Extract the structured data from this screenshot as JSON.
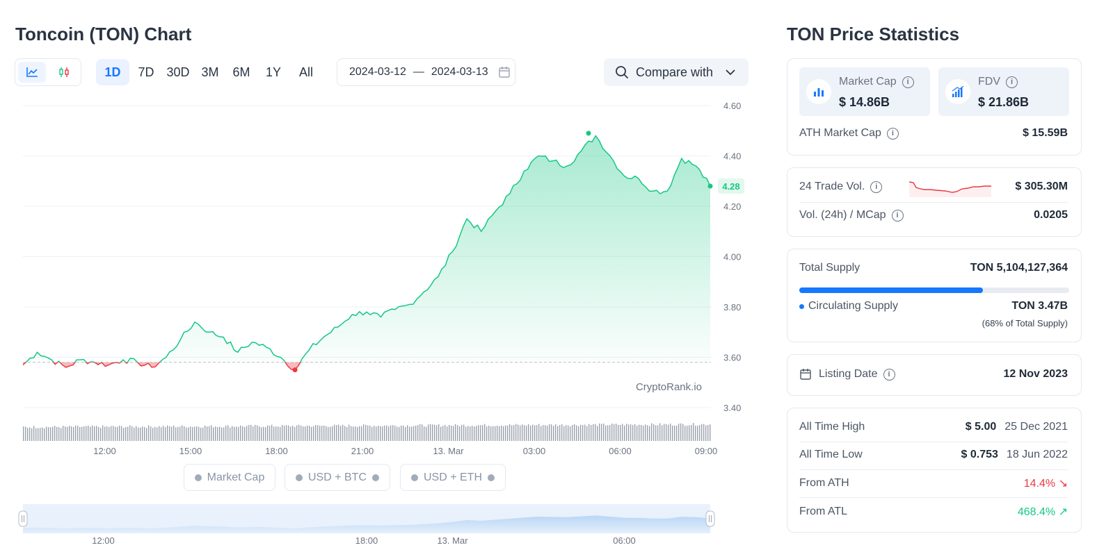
{
  "header": {
    "title": "Toncoin (TON) Chart"
  },
  "chart_controls": {
    "ranges": [
      "1D",
      "7D",
      "30D",
      "3M",
      "6M",
      "1Y",
      "All"
    ],
    "active_range": "1D",
    "date_from": "2024-03-12",
    "date_sep": "—",
    "date_to": "2024-03-13",
    "compare_label": "Compare with"
  },
  "legend": {
    "market_cap": "Market Cap",
    "usd_btc": "USD + BTC",
    "usd_eth": "USD + ETH"
  },
  "watermark": "CryptoRank.io",
  "chart_data": {
    "type": "area",
    "title": "Toncoin (TON) Chart",
    "y_ticks": [
      "4.60",
      "4.40",
      "4.20",
      "4.00",
      "3.80",
      "3.60",
      "3.40"
    ],
    "ylim": [
      3.4,
      4.6
    ],
    "x_ticks": [
      "12:00",
      "15:00",
      "18:00",
      "21:00",
      "13. Mar",
      "03:00",
      "06:00",
      "09:00"
    ],
    "navigator_ticks": [
      "12:00",
      "18:00",
      "13. Mar",
      "06:00"
    ],
    "baseline": 3.58,
    "current_value_label": "4.28",
    "x_hours": [
      0,
      0.5,
      1,
      1.5,
      2,
      2.5,
      3,
      3.5,
      4,
      4.5,
      5,
      5.5,
      6,
      6.5,
      7,
      7.5,
      8,
      8.5,
      9,
      9.5,
      10,
      10.5,
      11,
      11.5,
      12,
      12.5,
      13,
      13.5,
      14,
      14.5,
      15,
      15.5,
      16,
      16.5,
      17,
      17.5,
      18,
      18.5,
      19,
      19.5,
      20,
      20.5,
      21,
      21.5,
      22,
      22.5,
      23,
      23.5,
      24
    ],
    "x_dates": [
      "2024-03-12 09:00",
      "2024-03-12 09:30",
      "2024-03-12 10:00",
      "2024-03-12 10:30",
      "2024-03-12 11:00",
      "2024-03-12 11:30",
      "2024-03-12 12:00",
      "2024-03-12 12:30",
      "2024-03-12 13:00",
      "2024-03-12 13:30",
      "2024-03-12 14:00",
      "2024-03-12 14:30",
      "2024-03-12 15:00",
      "2024-03-12 15:30",
      "2024-03-12 16:00",
      "2024-03-12 16:30",
      "2024-03-12 17:00",
      "2024-03-12 17:30",
      "2024-03-12 18:00",
      "2024-03-12 18:30",
      "2024-03-12 19:00",
      "2024-03-12 19:30",
      "2024-03-12 20:00",
      "2024-03-12 20:30",
      "2024-03-12 21:00",
      "2024-03-12 21:30",
      "2024-03-12 22:00",
      "2024-03-12 22:30",
      "2024-03-12 23:00",
      "2024-03-12 23:30",
      "2024-03-13 00:00",
      "2024-03-13 00:30",
      "2024-03-13 01:00",
      "2024-03-13 01:30",
      "2024-03-13 02:00",
      "2024-03-13 02:30",
      "2024-03-13 03:00",
      "2024-03-13 03:30",
      "2024-03-13 04:00",
      "2024-03-13 04:30",
      "2024-03-13 05:00",
      "2024-03-13 05:30",
      "2024-03-13 06:00",
      "2024-03-13 06:30",
      "2024-03-13 07:00",
      "2024-03-13 07:30",
      "2024-03-13 08:00",
      "2024-03-13 08:30",
      "2024-03-13 09:00"
    ],
    "values": [
      3.57,
      3.62,
      3.59,
      3.56,
      3.59,
      3.58,
      3.57,
      3.59,
      3.58,
      3.56,
      3.6,
      3.67,
      3.74,
      3.7,
      3.68,
      3.62,
      3.66,
      3.64,
      3.6,
      3.55,
      3.63,
      3.68,
      3.72,
      3.77,
      3.78,
      3.76,
      3.79,
      3.81,
      3.86,
      3.92,
      4.02,
      4.15,
      4.1,
      4.18,
      4.25,
      4.34,
      4.4,
      4.38,
      4.36,
      4.42,
      4.48,
      4.4,
      4.32,
      4.31,
      4.26,
      4.26,
      4.39,
      4.36,
      4.28
    ],
    "series": [
      {
        "values": "values"
      }
    ],
    "min_marker": {
      "x_hours": 9.5,
      "value": 3.55
    },
    "max_marker": {
      "x_hours": 19.75,
      "value": 4.49
    }
  },
  "stats": {
    "title": "TON Price Statistics",
    "market_cap_label": "Market Cap",
    "market_cap_value": "$ 14.86B",
    "fdv_label": "FDV",
    "fdv_value": "$ 21.86B",
    "ath_market_cap_label": "ATH Market Cap",
    "ath_market_cap_value": "$ 15.59B",
    "trade_vol_label": "24 Trade Vol.",
    "trade_vol_value": "$ 305.30M",
    "vol_mcap_label": "Vol. (24h) / MCap",
    "vol_mcap_value": "0.0205",
    "total_supply_label": "Total Supply",
    "total_supply_value": "TON 5,104,127,364",
    "supply_fraction": 0.68,
    "circulating_label": "Circulating Supply",
    "circulating_value": "TON 3.47B",
    "circulating_note": "(68% of Total Supply)",
    "listing_label": "Listing Date",
    "listing_value": "12 Nov 2023",
    "ath_label": "All Time High",
    "ath_value": "$ 5.00",
    "ath_date": "25 Dec 2021",
    "atl_label": "All Time Low",
    "atl_value": "$ 0.753",
    "atl_date": "18 Jun 2022",
    "from_ath_label": "From ATH",
    "from_ath_value": "14.4%",
    "from_atl_label": "From ATL",
    "from_atl_value": "468.4%"
  },
  "colors": {
    "accent": "#1677ff",
    "up": "#16c784",
    "down": "#ea3943"
  }
}
